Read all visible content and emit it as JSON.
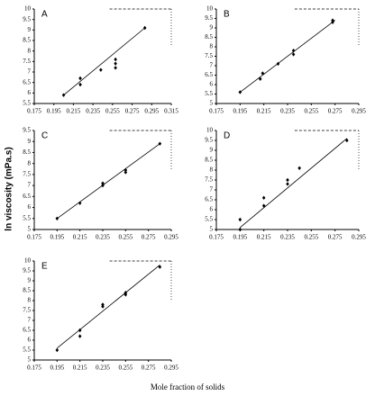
{
  "ylabel": "ln viscosity (mPa.s)",
  "xlabel": "Mole fraction of solids",
  "chart_data": [
    {
      "type": "scatter",
      "title": "A",
      "color": "#000000",
      "x": [
        0.205,
        0.222,
        0.222,
        0.243,
        0.258,
        0.258,
        0.258,
        0.288
      ],
      "values": [
        5.9,
        6.4,
        6.7,
        7.1,
        7.2,
        7.4,
        7.6,
        9.1
      ],
      "fit": {
        "x": [
          0.205,
          0.288
        ],
        "values": [
          5.9,
          9.1
        ]
      },
      "xlim": [
        0.175,
        0.315
      ],
      "xticks": [
        0.175,
        0.195,
        0.215,
        0.235,
        0.255,
        0.275,
        0.295,
        0.315
      ],
      "ylim": [
        5.5,
        10
      ],
      "yticks": [
        5.5,
        6,
        6.5,
        7,
        7.5,
        8,
        8.5,
        9,
        9.5,
        10
      ]
    },
    {
      "type": "scatter",
      "title": "B",
      "color": "#000000",
      "x": [
        0.195,
        0.212,
        0.214,
        0.227,
        0.24,
        0.24,
        0.273,
        0.273
      ],
      "values": [
        5.6,
        6.3,
        6.6,
        7.1,
        7.6,
        7.8,
        9.3,
        9.4
      ],
      "fit": {
        "x": [
          0.195,
          0.275
        ],
        "values": [
          5.6,
          9.4
        ]
      },
      "xlim": [
        0.175,
        0.295
      ],
      "xticks": [
        0.175,
        0.195,
        0.215,
        0.235,
        0.255,
        0.275,
        0.295
      ],
      "ylim": [
        5,
        10
      ],
      "yticks": [
        5,
        5.5,
        6,
        6.5,
        7,
        7.5,
        8,
        8.5,
        9,
        9.5,
        10
      ]
    },
    {
      "type": "scatter",
      "title": "C",
      "color": "#000000",
      "x": [
        0.195,
        0.215,
        0.235,
        0.235,
        0.255,
        0.255,
        0.285
      ],
      "values": [
        5.5,
        6.2,
        7.0,
        7.1,
        7.6,
        7.7,
        8.9
      ],
      "fit": {
        "x": [
          0.195,
          0.285
        ],
        "values": [
          5.5,
          8.9
        ]
      },
      "xlim": [
        0.175,
        0.295
      ],
      "xticks": [
        0.175,
        0.195,
        0.215,
        0.235,
        0.255,
        0.275,
        0.295
      ],
      "ylim": [
        5,
        9.5
      ],
      "yticks": [
        5,
        5.5,
        6,
        6.5,
        7,
        7.5,
        8,
        8.5,
        9,
        9.5
      ]
    },
    {
      "type": "scatter",
      "title": "D",
      "color": "#000000",
      "x": [
        0.195,
        0.195,
        0.215,
        0.215,
        0.235,
        0.235,
        0.245,
        0.285
      ],
      "values": [
        5.0,
        5.5,
        6.2,
        6.6,
        7.3,
        7.5,
        8.1,
        9.5
      ],
      "fit": {
        "x": [
          0.195,
          0.285
        ],
        "values": [
          5.1,
          9.6
        ]
      },
      "xlim": [
        0.175,
        0.295
      ],
      "xticks": [
        0.175,
        0.195,
        0.215,
        0.235,
        0.255,
        0.275,
        0.295
      ],
      "ylim": [
        5,
        10
      ],
      "yticks": [
        5,
        5.5,
        6,
        6.5,
        7,
        7.5,
        8,
        8.5,
        9,
        9.5,
        10
      ]
    },
    {
      "type": "scatter",
      "title": "E",
      "color": "#000000",
      "x": [
        0.195,
        0.215,
        0.215,
        0.235,
        0.235,
        0.255,
        0.255,
        0.285
      ],
      "values": [
        5.5,
        6.2,
        6.5,
        7.7,
        7.8,
        8.3,
        8.4,
        9.7
      ],
      "fit": {
        "x": [
          0.195,
          0.285
        ],
        "values": [
          5.6,
          9.8
        ]
      },
      "xlim": [
        0.175,
        0.295
      ],
      "xticks": [
        0.175,
        0.195,
        0.215,
        0.235,
        0.255,
        0.275,
        0.295
      ],
      "ylim": [
        5,
        10
      ],
      "yticks": [
        5,
        5.5,
        6,
        6.5,
        7,
        7.5,
        8,
        8.5,
        9,
        9.5,
        10
      ]
    }
  ]
}
